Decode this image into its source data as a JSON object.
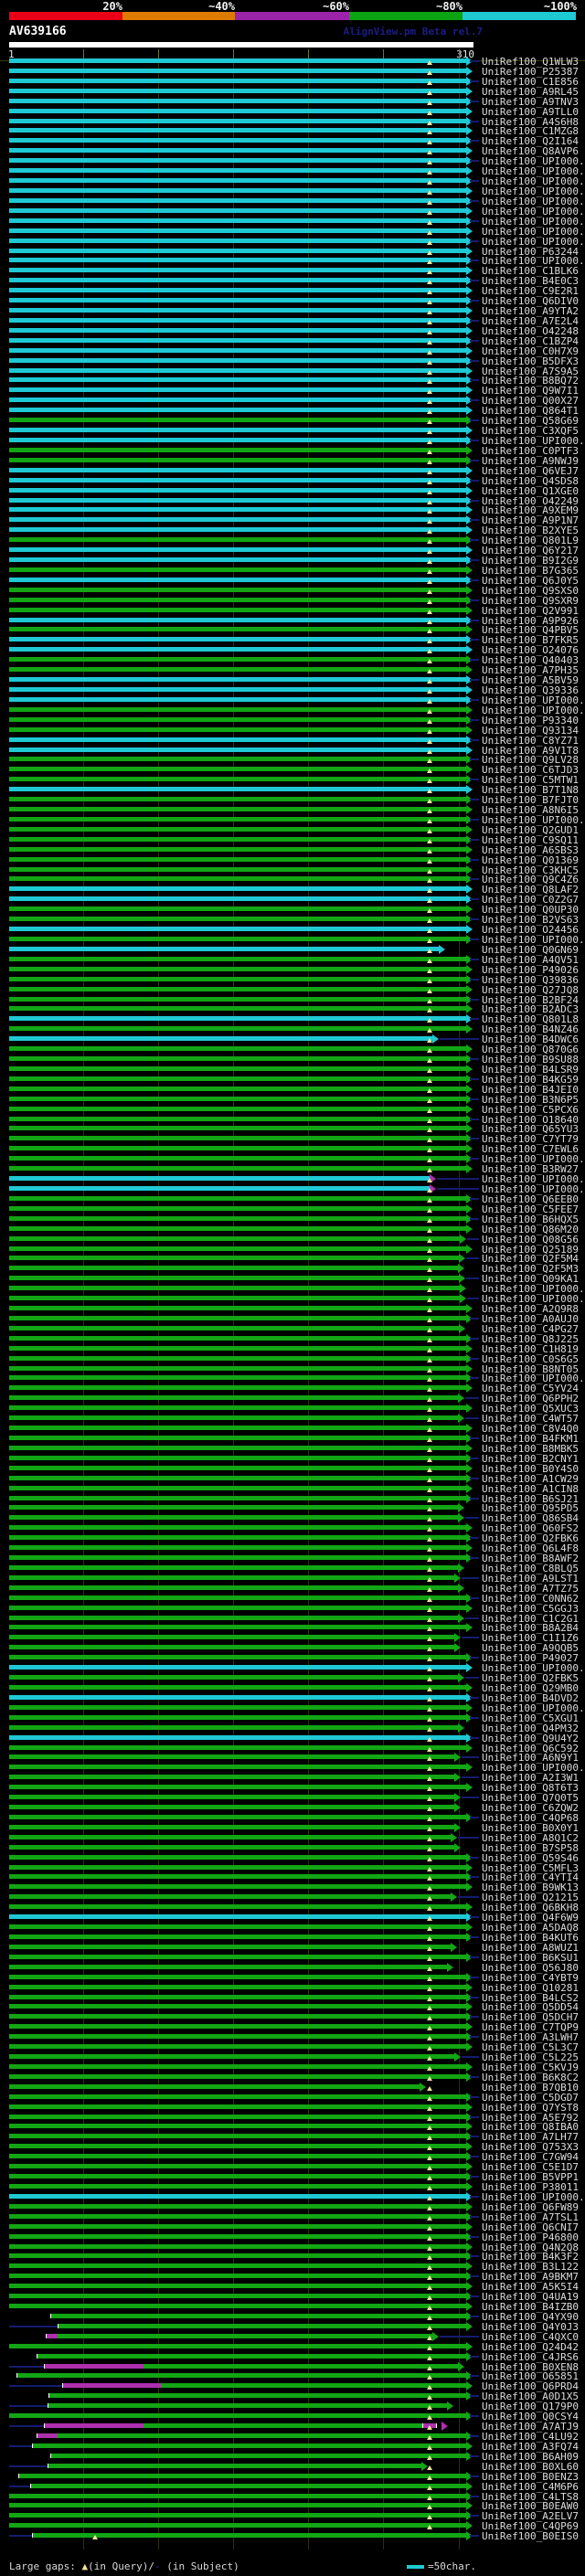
{
  "header": {
    "watermark": "AlignView.pm Beta rel.7"
  },
  "footer": {
    "legend_prefix": "Large gaps: ",
    "query_gap_marker": "▲",
    "query_gap_text": "(in Query)/",
    "subject_gap_marker": "-",
    "subject_gap_text": " (in Subject)",
    "scale_text": "=50char."
  },
  "chart_data": {
    "type": "alignment-overview",
    "query": {
      "name": "AV639166",
      "ruler_start": "1",
      "ruler_end": "310",
      "length": 310,
      "ticks": [
        50,
        100,
        150,
        200,
        250,
        300
      ]
    },
    "identity_scale": {
      "labels": [
        "20%",
        "~40%",
        "~60%",
        "~80%",
        "~100%"
      ],
      "colors": [
        "#E90016",
        "#DD7A00",
        "#9C22AC",
        "#0CA312",
        "#1EC9D4"
      ]
    },
    "palette": {
      "c": "#1EC9D4",
      "g": "#12A614",
      "m": "#AE2FAE",
      "navy": "#141C6E"
    },
    "legend_meaning": {
      "triangle": "large gap in Query",
      "dash": "large gap in Subject",
      "cyan_bar_equals": "50 characters"
    },
    "rows": [
      {
        "l": "UniRef100_Q1WLW3",
        "c": "c"
      },
      {
        "l": "UniRef100_P25387",
        "c": "c"
      },
      {
        "l": "UniRef100_C1E856",
        "c": "c"
      },
      {
        "l": "UniRef100_A9RL45",
        "c": "c"
      },
      {
        "l": "UniRef100_A9TNV3",
        "c": "c"
      },
      {
        "l": "UniRef100_A9TLL0",
        "c": "c"
      },
      {
        "l": "UniRef100_A4S6H8",
        "c": "c"
      },
      {
        "l": "UniRef100_C1MZG8",
        "c": "c"
      },
      {
        "l": "UniRef100_Q2I164",
        "c": "c"
      },
      {
        "l": "UniRef100_Q8AVP6",
        "c": "c"
      },
      {
        "l": "UniRef100_UPI000..",
        "c": "c"
      },
      {
        "l": "UniRef100_UPI000..",
        "c": "c"
      },
      {
        "l": "UniRef100_UPI000..",
        "c": "c"
      },
      {
        "l": "UniRef100_UPI000..",
        "c": "c"
      },
      {
        "l": "UniRef100_UPI000..",
        "c": "c"
      },
      {
        "l": "UniRef100_UPI000..",
        "c": "c"
      },
      {
        "l": "UniRef100_UPI000..",
        "c": "c"
      },
      {
        "l": "UniRef100_UPI000..",
        "c": "c"
      },
      {
        "l": "UniRef100_UPI000..",
        "c": "c"
      },
      {
        "l": "UniRef100_P63244",
        "c": "c"
      },
      {
        "l": "UniRef100_UPI000..",
        "c": "c"
      },
      {
        "l": "UniRef100_C1BLK6",
        "c": "c"
      },
      {
        "l": "UniRef100_B4E0C3",
        "c": "c"
      },
      {
        "l": "UniRef100_C9E2R1",
        "c": "c"
      },
      {
        "l": "UniRef100_Q6DIV0",
        "c": "c"
      },
      {
        "l": "UniRef100_A9YTA2",
        "c": "c"
      },
      {
        "l": "UniRef100_A7E2L4",
        "c": "c"
      },
      {
        "l": "UniRef100_O42248",
        "c": "c"
      },
      {
        "l": "UniRef100_C1BZP4",
        "c": "c"
      },
      {
        "l": "UniRef100_C0H7X9",
        "c": "c"
      },
      {
        "l": "UniRef100_B5DFX3",
        "c": "c"
      },
      {
        "l": "UniRef100_A7S9A5",
        "c": "c"
      },
      {
        "l": "UniRef100_B8BQ72",
        "c": "c"
      },
      {
        "l": "UniRef100_Q9W7I1",
        "c": "c"
      },
      {
        "l": "UniRef100_Q00X27",
        "c": "c"
      },
      {
        "l": "UniRef100_Q864T1",
        "c": "c"
      },
      {
        "l": "UniRef100_Q58G69",
        "c": "g"
      },
      {
        "l": "UniRef100_C3XQF5",
        "c": "c"
      },
      {
        "l": "UniRef100_UPI000..",
        "c": "c"
      },
      {
        "l": "UniRef100_C0PTF3",
        "c": "g"
      },
      {
        "l": "UniRef100_A9NWJ9",
        "c": "g"
      },
      {
        "l": "UniRef100_Q6VEJ7",
        "c": "c"
      },
      {
        "l": "UniRef100_Q4SDS8",
        "c": "c"
      },
      {
        "l": "UniRef100_Q1XGE0",
        "c": "c"
      },
      {
        "l": "UniRef100_O42249",
        "c": "c"
      },
      {
        "l": "UniRef100_A9XEM9",
        "c": "c"
      },
      {
        "l": "UniRef100_A9P1N7",
        "c": "c"
      },
      {
        "l": "UniRef100_B2XYE5",
        "c": "c"
      },
      {
        "l": "UniRef100_Q801L9",
        "c": "g"
      },
      {
        "l": "UniRef100_Q6Y217",
        "c": "c"
      },
      {
        "l": "UniRef100_B9I2G9",
        "c": "c"
      },
      {
        "l": "UniRef100_B7G365",
        "c": "g"
      },
      {
        "l": "UniRef100_Q6J0Y5",
        "c": "c"
      },
      {
        "l": "UniRef100_Q9SXS0",
        "c": "g"
      },
      {
        "l": "UniRef100_Q9SXR9",
        "c": "g"
      },
      {
        "l": "UniRef100_Q2V991",
        "c": "g"
      },
      {
        "l": "UniRef100_A9P926",
        "c": "c"
      },
      {
        "l": "UniRef100_Q4PBV5",
        "c": "g"
      },
      {
        "l": "UniRef100_B7FKR5",
        "c": "c"
      },
      {
        "l": "UniRef100_O24076",
        "c": "c"
      },
      {
        "l": "UniRef100_Q40403",
        "c": "g"
      },
      {
        "l": "UniRef100_A7PH35",
        "c": "g"
      },
      {
        "l": "UniRef100_A5BV59",
        "c": "c"
      },
      {
        "l": "UniRef100_Q39336",
        "c": "c"
      },
      {
        "l": "UniRef100_UPI000..",
        "c": "c"
      },
      {
        "l": "UniRef100_UPI000..",
        "c": "g"
      },
      {
        "l": "UniRef100_P93340",
        "c": "g"
      },
      {
        "l": "UniRef100_Q93134",
        "c": "g"
      },
      {
        "l": "UniRef100_C8YZ71",
        "c": "c"
      },
      {
        "l": "UniRef100_A9V1T8",
        "c": "c"
      },
      {
        "l": "UniRef100_Q9LV28",
        "c": "g"
      },
      {
        "l": "UniRef100_C6TJD3",
        "c": "g"
      },
      {
        "l": "UniRef100_C5MTW1",
        "c": "g"
      },
      {
        "l": "UniRef100_B7T1N8",
        "c": "c"
      },
      {
        "l": "UniRef100_B7FJT0",
        "c": "g"
      },
      {
        "l": "UniRef100_A8N6I5",
        "c": "g"
      },
      {
        "l": "UniRef100_UPI000..",
        "c": "g"
      },
      {
        "l": "UniRef100_Q2GUD1",
        "c": "g"
      },
      {
        "l": "UniRef100_C9SQ11",
        "c": "g"
      },
      {
        "l": "UniRef100_A6SBS3",
        "c": "g"
      },
      {
        "l": "UniRef100_Q01369",
        "c": "g"
      },
      {
        "l": "UniRef100_C3KHC5",
        "c": "g"
      },
      {
        "l": "UniRef100_Q9C4Z6",
        "c": "g"
      },
      {
        "l": "UniRef100_Q8LAF2",
        "c": "c"
      },
      {
        "l": "UniRef100_C0Z2G7",
        "c": "c"
      },
      {
        "l": "UniRef100_Q0UP30",
        "c": "g"
      },
      {
        "l": "UniRef100_B2VS63",
        "c": "g"
      },
      {
        "l": "UniRef100_O24456",
        "c": "c"
      },
      {
        "l": "UniRef100_UPI000..",
        "c": "g"
      },
      {
        "l": "UniRef100_Q0GN69",
        "c": "c",
        "e": 480
      },
      {
        "l": "UniRef100_A4QV51",
        "c": "g"
      },
      {
        "l": "UniRef100_P49026",
        "c": "g"
      },
      {
        "l": "UniRef100_Q39836",
        "c": "g"
      },
      {
        "l": "UniRef100_Q27JQ8",
        "c": "g"
      },
      {
        "l": "UniRef100_B2BF24",
        "c": "g"
      },
      {
        "l": "UniRef100_B2ADC3",
        "c": "g"
      },
      {
        "l": "UniRef100_Q801L8",
        "c": "c"
      },
      {
        "l": "UniRef100_B4NZ46",
        "c": "g"
      },
      {
        "l": "UniRef100_B4DWC6",
        "c": "c",
        "e": 473
      },
      {
        "l": "UniRef100_Q870G6",
        "c": "g"
      },
      {
        "l": "UniRef100_B9SU88",
        "c": "g"
      },
      {
        "l": "UniRef100_B4LSR9",
        "c": "g"
      },
      {
        "l": "UniRef100_B4KG59",
        "c": "g"
      },
      {
        "l": "UniRef100_B4JEI0",
        "c": "g"
      },
      {
        "l": "UniRef100_B3N6P5",
        "c": "g"
      },
      {
        "l": "UniRef100_C5PCX6",
        "c": "g"
      },
      {
        "l": "UniRef100_O18640",
        "c": "g"
      },
      {
        "l": "UniRef100_Q65YU3",
        "c": "g"
      },
      {
        "l": "UniRef100_C7YT79",
        "c": "g"
      },
      {
        "l": "UniRef100_C7EWL6",
        "c": "g"
      },
      {
        "l": "UniRef100_UPI000..",
        "c": "g"
      },
      {
        "l": "UniRef100_B3RW27",
        "c": "g"
      },
      {
        "l": "UniRef100_UPI000..",
        "c": "c",
        "e": 470,
        "ac": "m"
      },
      {
        "l": "UniRef100_UPI000..",
        "c": "c",
        "e": 470,
        "ac": "m",
        "t": 1
      },
      {
        "l": "UniRef100_Q6EEB0",
        "c": "g"
      },
      {
        "l": "UniRef100_C5FEE7",
        "c": "g"
      },
      {
        "l": "UniRef100_B6HQX5",
        "c": "g"
      },
      {
        "l": "UniRef100_Q86M20",
        "c": "g"
      },
      {
        "l": "UniRef100_Q08G56",
        "c": "g",
        "e": 503
      },
      {
        "l": "UniRef100_Q25189",
        "c": "g"
      },
      {
        "l": "UniRef100_Q2F5M4",
        "c": "g",
        "e": 502
      },
      {
        "l": "UniRef100_Q2F5M3",
        "c": "g",
        "e": 501
      },
      {
        "l": "UniRef100_Q09KA1",
        "c": "g",
        "e": 502
      },
      {
        "l": "UniRef100_UPI000..",
        "c": "g",
        "e": 503
      },
      {
        "l": "UniRef100_UPI000..",
        "c": "g",
        "e": 503
      },
      {
        "l": "UniRef100_A2Q9R8",
        "c": "g"
      },
      {
        "l": "UniRef100_A0AUJ0",
        "c": "g"
      },
      {
        "l": "UniRef100_C4PG27",
        "c": "g",
        "e": 502
      },
      {
        "l": "UniRef100_Q8J225",
        "c": "g"
      },
      {
        "l": "UniRef100_C1H819",
        "c": "g"
      },
      {
        "l": "UniRef100_C0S6G5",
        "c": "g"
      },
      {
        "l": "UniRef100_B8NT05",
        "c": "g"
      },
      {
        "l": "UniRef100_UPI000..",
        "c": "g"
      },
      {
        "l": "UniRef100_C5YV24",
        "c": "g"
      },
      {
        "l": "UniRef100_Q6PPH2",
        "c": "g",
        "e": 501
      },
      {
        "l": "UniRef100_Q5XUC3",
        "c": "g"
      },
      {
        "l": "UniRef100_C4WT57",
        "c": "g",
        "e": 501
      },
      {
        "l": "UniRef100_C8V4Q0",
        "c": "g"
      },
      {
        "l": "UniRef100_B4FKM1",
        "c": "g"
      },
      {
        "l": "UniRef100_B8MBK5",
        "c": "g"
      },
      {
        "l": "UniRef100_B2CNY1",
        "c": "g"
      },
      {
        "l": "UniRef100_B0Y4S0",
        "c": "g"
      },
      {
        "l": "UniRef100_A1CW29",
        "c": "g"
      },
      {
        "l": "UniRef100_A1CIN8",
        "c": "g"
      },
      {
        "l": "UniRef100_B6SJ21",
        "c": "g"
      },
      {
        "l": "UniRef100_Q95PD5",
        "c": "g",
        "e": 501
      },
      {
        "l": "UniRef100_Q86SB4",
        "c": "g",
        "e": 501
      },
      {
        "l": "UniRef100_Q60FS2",
        "c": "g"
      },
      {
        "l": "UniRef100_Q2FBK6",
        "c": "g"
      },
      {
        "l": "UniRef100_Q6L4F8",
        "c": "g"
      },
      {
        "l": "UniRef100_B8AWF2",
        "c": "g"
      },
      {
        "l": "UniRef100_C8BLQ5",
        "c": "g",
        "e": 501
      },
      {
        "l": "UniRef100_A9LST1",
        "c": "g",
        "e": 497
      },
      {
        "l": "UniRef100_A7TZ75",
        "c": "g",
        "e": 501
      },
      {
        "l": "UniRef100_C0NN62",
        "c": "g"
      },
      {
        "l": "UniRef100_C5GGJ3",
        "c": "g"
      },
      {
        "l": "UniRef100_C1C2G1",
        "c": "g",
        "e": 501
      },
      {
        "l": "UniRef100_B8A2B4",
        "c": "g"
      },
      {
        "l": "UniRef100_C1I1Z6",
        "c": "g",
        "e": 497
      },
      {
        "l": "UniRef100_A9QQB5",
        "c": "g",
        "e": 497
      },
      {
        "l": "UniRef100_P49027",
        "c": "g"
      },
      {
        "l": "UniRef100_UPI000..",
        "c": "c"
      },
      {
        "l": "UniRef100_Q2FBK5",
        "c": "g",
        "e": 501
      },
      {
        "l": "UniRef100_Q29MB0",
        "c": "g"
      },
      {
        "l": "UniRef100_B4DVD2",
        "c": "c"
      },
      {
        "l": "UniRef100_UPI000..",
        "c": "g"
      },
      {
        "l": "UniRef100_C5XGU1",
        "c": "g"
      },
      {
        "l": "UniRef100_Q4PM32",
        "c": "g",
        "e": 501
      },
      {
        "l": "UniRef100_Q9U4Y2",
        "c": "c"
      },
      {
        "l": "UniRef100_Q6C592",
        "c": "g"
      },
      {
        "l": "UniRef100_A6N9Y1",
        "c": "g",
        "e": 497
      },
      {
        "l": "UniRef100_UPI000..",
        "c": "g"
      },
      {
        "l": "UniRef100_A2I3W1",
        "c": "g",
        "e": 497
      },
      {
        "l": "UniRef100_Q8T6T3",
        "c": "g"
      },
      {
        "l": "UniRef100_Q7Q0T5",
        "c": "g",
        "e": 497
      },
      {
        "l": "UniRef100_C6ZQW2",
        "c": "g",
        "e": 497
      },
      {
        "l": "UniRef100_C4QP68",
        "c": "g"
      },
      {
        "l": "UniRef100_B0X0Y1",
        "c": "g",
        "e": 497
      },
      {
        "l": "UniRef100_A8Q1C2",
        "c": "g",
        "e": 493
      },
      {
        "l": "UniRef100_B7SP58",
        "c": "g",
        "e": 497
      },
      {
        "l": "UniRef100_Q59S46",
        "c": "g"
      },
      {
        "l": "UniRef100_C5MFL3",
        "c": "g"
      },
      {
        "l": "UniRef100_C4YTI4",
        "c": "g"
      },
      {
        "l": "UniRef100_B9WK13",
        "c": "g"
      },
      {
        "l": "UniRef100_Q21215",
        "c": "g",
        "e": 493
      },
      {
        "l": "UniRef100_Q6BKH8",
        "c": "g"
      },
      {
        "l": "UniRef100_Q4F6W9",
        "c": "c"
      },
      {
        "l": "UniRef100_A5DAQ8",
        "c": "g"
      },
      {
        "l": "UniRef100_B4KUT6",
        "c": "g"
      },
      {
        "l": "UniRef100_A8WUZ1",
        "c": "g",
        "e": 493
      },
      {
        "l": "UniRef100_B6KSU1",
        "c": "g"
      },
      {
        "l": "UniRef100_Q56J80",
        "c": "g",
        "e": 489
      },
      {
        "l": "UniRef100_C4YBT9",
        "c": "g"
      },
      {
        "l": "UniRef100_Q10281",
        "c": "g"
      },
      {
        "l": "UniRef100_B4LCS2",
        "c": "g"
      },
      {
        "l": "UniRef100_Q5DD54",
        "c": "g"
      },
      {
        "l": "UniRef100_Q5DCH7",
        "c": "g"
      },
      {
        "l": "UniRef100_C7TQP9",
        "c": "g"
      },
      {
        "l": "UniRef100_A3LWH7",
        "c": "g"
      },
      {
        "l": "UniRef100_C5L3C7",
        "c": "g"
      },
      {
        "l": "UniRef100_C5L225",
        "c": "g",
        "e": 497
      },
      {
        "l": "UniRef100_C5KVJ9",
        "c": "g"
      },
      {
        "l": "UniRef100_B6K8C2",
        "c": "g"
      },
      {
        "l": "UniRef100_B7QB10",
        "c": "g",
        "e": 459
      },
      {
        "l": "UniRef100_C5DGD7",
        "c": "g"
      },
      {
        "l": "UniRef100_Q7YST8",
        "c": "g"
      },
      {
        "l": "UniRef100_A5E792",
        "c": "g"
      },
      {
        "l": "UniRef100_Q8IBA0",
        "c": "g"
      },
      {
        "l": "UniRef100_A7LH77",
        "c": "g"
      },
      {
        "l": "UniRef100_Q753X3",
        "c": "g"
      },
      {
        "l": "UniRef100_C7GW94",
        "c": "g"
      },
      {
        "l": "UniRef100_C5E1D7",
        "c": "g"
      },
      {
        "l": "UniRef100_B5VPP1",
        "c": "g"
      },
      {
        "l": "UniRef100_P38011",
        "c": "g"
      },
      {
        "l": "UniRef100_UPI000..",
        "c": "c"
      },
      {
        "l": "UniRef100_Q6FW89",
        "c": "g"
      },
      {
        "l": "UniRef100_A7TSL1",
        "c": "g"
      },
      {
        "l": "UniRef100_Q6CNI7",
        "c": "g"
      },
      {
        "l": "UniRef100_P46800",
        "c": "g"
      },
      {
        "l": "UniRef100_Q4N2Q8",
        "c": "g"
      },
      {
        "l": "UniRef100_B4K3F2",
        "c": "g"
      },
      {
        "l": "UniRef100_B3L122",
        "c": "g"
      },
      {
        "l": "UniRef100_A9BKM7",
        "c": "g"
      },
      {
        "l": "UniRef100_A5K5I4",
        "c": "g"
      },
      {
        "l": "UniRef100_Q4UA19",
        "c": "g"
      },
      {
        "l": "UniRef100_B4IZB0",
        "c": "g"
      },
      {
        "l": "UniRef100_Q4YX90",
        "c": "g",
        "s": 55
      },
      {
        "l": "UniRef100_Q4Y0J3",
        "c": "g",
        "s": 63,
        "ld": 1
      },
      {
        "l": "UniRef100_C4QXC0",
        "c": "g",
        "s": 50,
        "m": [
          50,
          63
        ],
        "e": 473
      },
      {
        "l": "UniRef100_Q24D42",
        "c": "g"
      },
      {
        "l": "UniRef100_C4JRS6",
        "c": "g",
        "s": 40
      },
      {
        "l": "UniRef100_B0XEN8",
        "c": "g",
        "s": 48,
        "m": [
          48,
          157
        ],
        "ld": 1,
        "e": 501
      },
      {
        "l": "UniRef100_O65851",
        "c": "g",
        "s": 18
      },
      {
        "l": "UniRef100_Q6PRD4",
        "c": "g",
        "s": 68,
        "m": [
          68,
          176
        ],
        "ld": 1
      },
      {
        "l": "UniRef100_A0D1X5",
        "c": "g",
        "s": 53
      },
      {
        "l": "UniRef100_Q179P0",
        "c": "g",
        "s": 52,
        "ld": 1,
        "e": 489
      },
      {
        "l": "UniRef100_Q0CSY4",
        "c": "g"
      },
      {
        "l": "UniRef100_A7ATJ9",
        "c": "g",
        "s": 48,
        "m": [
          48,
          157
        ],
        "m2": [
          462,
          483
        ],
        "ld": 1,
        "e": 483,
        "ac": "m"
      },
      {
        "l": "UniRef100_C4LU92",
        "c": "g",
        "s": 40,
        "m": [
          40,
          63
        ]
      },
      {
        "l": "UniRef100_A3FQ74",
        "c": "g",
        "s": 35,
        "ld": 1
      },
      {
        "l": "UniRef100_B6AH09",
        "c": "g",
        "s": 55
      },
      {
        "l": "UniRef100_B0XL60",
        "c": "g",
        "s": 52,
        "ld": 1,
        "e": 461
      },
      {
        "l": "UniRef100_B0ENZ3",
        "c": "g",
        "s": 20
      },
      {
        "l": "UniRef100_C4M6P6",
        "c": "g",
        "s": 33,
        "ld": 1
      },
      {
        "l": "UniRef100_C4LTS8",
        "c": "g"
      },
      {
        "l": "UniRef100_B0EAW0",
        "c": "g"
      },
      {
        "l": "UniRef100_A2ELV7",
        "c": "g"
      },
      {
        "l": "UniRef100_C4QP69",
        "c": "g"
      },
      {
        "l": "UniRef100_B0EIS0",
        "c": "g",
        "s": 35,
        "ld": 1,
        "mx": 104
      }
    ]
  }
}
